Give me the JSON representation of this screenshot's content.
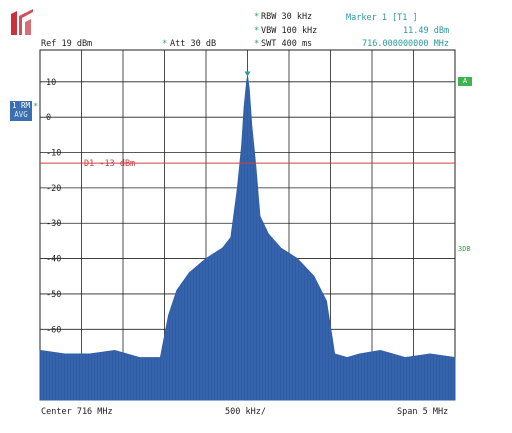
{
  "header": {
    "rbw": "RBW 30 kHz",
    "vbw": "VBW 100 kHz",
    "swt": "SWT 400 ms",
    "marker_title": "Marker 1 [T1 ]",
    "marker_level": "11.49 dBm",
    "marker_freq": "716.000000000 MHz",
    "ref": "Ref  19 dBm",
    "att": "Att  30 dB"
  },
  "badges": {
    "trace_line1": "1 RM",
    "trace_line2": "AVG",
    "right_flag": "A",
    "right_side_label": "3DB"
  },
  "footer": {
    "center": "Center  716 MHz",
    "div": "500 kHz/",
    "span": "Span  5 MHz"
  },
  "colors": {
    "trace": "#2f5ea8",
    "display_line": "#d04040",
    "grid": "#222222",
    "marker": "#2a9a9a"
  },
  "chart_data": {
    "type": "area",
    "xlabel": "",
    "ylabel": "",
    "xlim": [
      713.5,
      718.5
    ],
    "ylim": [
      -80,
      19
    ],
    "ytick_labels": [
      "10",
      "0",
      "-10",
      "-20",
      "-30",
      "-40",
      "-50",
      "-60"
    ],
    "ytick_values": [
      10,
      0,
      -10,
      -20,
      -30,
      -40,
      -50,
      -60
    ],
    "display_line": {
      "label": "D1  -13 dBm",
      "value": -13
    },
    "marker": {
      "x": 716.0,
      "y": 11.49
    },
    "series": [
      {
        "x": [
          713.5,
          713.8,
          714.1,
          714.4,
          714.7,
          714.95,
          715.05,
          715.15,
          715.3,
          715.5,
          715.7,
          715.8,
          715.88,
          715.93,
          715.96,
          715.99,
          716.0,
          716.02,
          716.05,
          716.1,
          716.15,
          716.25,
          716.4,
          716.6,
          716.8,
          716.95,
          717.05,
          717.2,
          717.35,
          717.6,
          717.9,
          718.2,
          718.5
        ],
        "y": [
          -66,
          -67,
          -67,
          -66,
          -68,
          -68,
          -56,
          -49,
          -44,
          -40,
          -37,
          -34,
          -20,
          -8,
          3,
          10,
          11.49,
          8,
          -2,
          -14,
          -28,
          -33,
          -37,
          -40,
          -45,
          -52,
          -67,
          -68,
          -67,
          -66,
          -68,
          -67,
          -68
        ]
      }
    ]
  }
}
